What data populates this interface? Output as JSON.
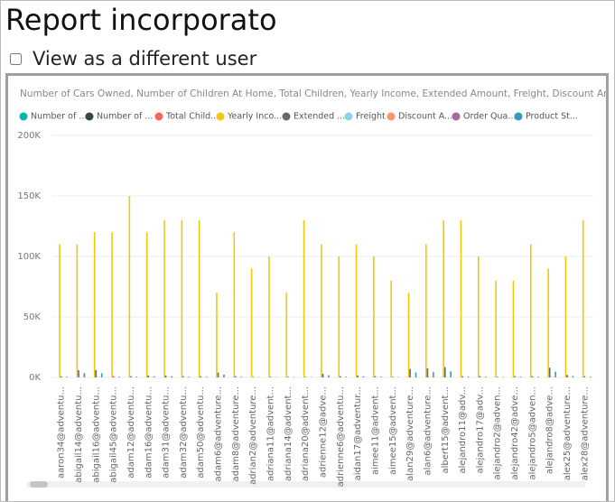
{
  "header": {
    "title": "Report incorporato"
  },
  "controls": {
    "view_as_label": "View as a different user"
  },
  "chart_data": {
    "type": "bar",
    "title": "Number of Cars Owned, Number of Children At Home, Total Children, Yearly Income, Extended Amount, Freight, Discount Am...",
    "categories": [
      "aaron34@adventu...",
      "abigail14@adventu...",
      "abigail16@adventu...",
      "abigail45@adventu...",
      "adam12@adventu...",
      "adam16@adventu...",
      "adam31@adventu...",
      "adam32@adventu...",
      "adam50@adventu...",
      "adam6@adventure...",
      "adam8@adventure...",
      "adrian2@adventure...",
      "adriana11@advent...",
      "adriana14@advent...",
      "adriana20@advent...",
      "adrienne12@adve...",
      "adrienne6@adventu...",
      "aidan17@adventur...",
      "aimee11@advent...",
      "aimee15@advent...",
      "alan29@adventure...",
      "alan6@adventure...",
      "albert15@advent...",
      "alejandro11@adv...",
      "alejandro17@adv...",
      "alejandro2@adven...",
      "alejandro42@adve...",
      "alejandro5@adven...",
      "alejandro8@adve...",
      "alex25@adventure...",
      "alex28@adventure..."
    ],
    "series": [
      {
        "name": "Number of ...",
        "color": "#01B8AA",
        "values": [
          0,
          1,
          2,
          1,
          3,
          2,
          1,
          0,
          2,
          1,
          2,
          0,
          1,
          2,
          3,
          1,
          0,
          2,
          1,
          2,
          1,
          0,
          3,
          2,
          1,
          2,
          0,
          1,
          2,
          1,
          2
        ]
      },
      {
        "name": "Number of ...",
        "color": "#374649",
        "values": [
          0,
          2,
          1,
          0,
          3,
          1,
          0,
          2,
          1,
          0,
          2,
          1,
          0,
          0,
          3,
          1,
          2,
          0,
          1,
          0,
          2,
          1,
          3,
          0,
          1,
          2,
          0,
          1,
          0,
          2,
          1
        ]
      },
      {
        "name": "Total Child...",
        "color": "#FD625E",
        "values": [
          1,
          3,
          2,
          1,
          4,
          2,
          1,
          3,
          2,
          1,
          3,
          2,
          1,
          0,
          4,
          2,
          3,
          1,
          2,
          1,
          3,
          2,
          4,
          1,
          2,
          3,
          1,
          2,
          1,
          3,
          2
        ]
      },
      {
        "name": "Yearly Inco...",
        "color": "#F2C80F",
        "values": [
          110000,
          110000,
          120000,
          120000,
          150000,
          120000,
          130000,
          130000,
          130000,
          70000,
          120000,
          90000,
          100000,
          70000,
          130000,
          110000,
          100000,
          110000,
          100000,
          80000,
          70000,
          110000,
          130000,
          130000,
          100000,
          80000,
          80000,
          110000,
          90000,
          100000,
          130000
        ]
      },
      {
        "name": "Extended ...",
        "color": "#5F6B6D",
        "values": [
          1000,
          6000,
          6000,
          1000,
          1000,
          1500,
          1500,
          1000,
          1000,
          4000,
          1000,
          500,
          500,
          500,
          500,
          3000,
          1000,
          1500,
          1000,
          500,
          7000,
          7500,
          8500,
          1000,
          1000,
          500,
          1000,
          1000,
          8000,
          2000,
          1000
        ]
      },
      {
        "name": "Freight",
        "color": "#8AD4EB",
        "values": [
          25,
          150,
          150,
          25,
          25,
          40,
          40,
          25,
          25,
          100,
          25,
          12,
          12,
          12,
          12,
          75,
          25,
          40,
          25,
          12,
          175,
          190,
          210,
          25,
          25,
          12,
          25,
          25,
          200,
          50,
          25
        ]
      },
      {
        "name": "Discount A...",
        "color": "#FE9666",
        "values": [
          0,
          0,
          0,
          0,
          0,
          0,
          0,
          0,
          0,
          0,
          0,
          0,
          0,
          0,
          0,
          0,
          0,
          0,
          0,
          0,
          0,
          0,
          0,
          0,
          0,
          0,
          0,
          0,
          0,
          0,
          0
        ]
      },
      {
        "name": "Order Qua...",
        "color": "#A66999",
        "values": [
          2,
          4,
          5,
          2,
          1,
          3,
          3,
          2,
          2,
          4,
          2,
          1,
          1,
          1,
          1,
          3,
          2,
          3,
          2,
          1,
          5,
          6,
          6,
          2,
          2,
          1,
          2,
          2,
          6,
          3,
          2
        ]
      },
      {
        "name": "Product St...",
        "color": "#3599B8",
        "values": [
          600,
          3500,
          3500,
          600,
          600,
          900,
          900,
          600,
          600,
          2300,
          600,
          300,
          300,
          300,
          300,
          1800,
          600,
          900,
          600,
          300,
          4100,
          4400,
          5000,
          600,
          600,
          300,
          600,
          600,
          4700,
          1200,
          600
        ]
      }
    ],
    "ylim": [
      0,
      200000
    ],
    "yticks": [
      {
        "value": 0,
        "label": "0K"
      },
      {
        "value": 50000,
        "label": "50K"
      },
      {
        "value": 100000,
        "label": "100K"
      },
      {
        "value": 150000,
        "label": "150K"
      },
      {
        "value": 200000,
        "label": "200K"
      }
    ],
    "grid": true
  }
}
